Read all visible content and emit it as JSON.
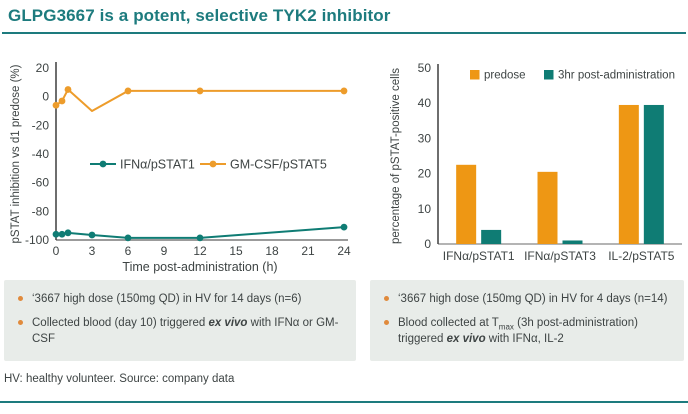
{
  "slide": {
    "title": "GLPG3667 is a potent, selective TYK2 inhibitor",
    "footer": "HV: healthy volunteer. Source: company data"
  },
  "colors": {
    "accent_teal": "#1D7B7E",
    "series_teal": "#0F7C74",
    "series_orange": "#ED9C2B",
    "bar_orange": "#EE9714",
    "box_background": "#E8ECE9",
    "bullet_dot": "#E08A3C",
    "text_dark": "#3E4444",
    "axis_dark": "#3F3F3F",
    "axis_gray": "#9B9B9B"
  },
  "chart_data": [
    {
      "type": "line",
      "title": "",
      "xlabel": "Time post-administration (h)",
      "ylabel": "pSTAT inhibition vs d1 predose (%)",
      "xlim": [
        0,
        24
      ],
      "ylim": [
        -100,
        20
      ],
      "xticks": [
        0,
        3,
        6,
        9,
        12,
        15,
        18,
        21,
        24
      ],
      "yticks": [
        20,
        0,
        -20,
        -40,
        -60,
        -80,
        -100
      ],
      "grid": false,
      "legend_position": "inside-center",
      "series": [
        {
          "name": "IFNα/pSTAT1",
          "color": "#0F7C74",
          "points": [
            {
              "x": 0,
              "y": -96,
              "marker": true
            },
            {
              "x": 0.5,
              "y": -96,
              "marker": true
            },
            {
              "x": 1,
              "y": -95,
              "marker": true
            },
            {
              "x": 3,
              "y": -96.5,
              "marker": true
            },
            {
              "x": 6,
              "y": -98.5,
              "marker": true
            },
            {
              "x": 12,
              "y": -98.5,
              "marker": true
            },
            {
              "x": 24,
              "y": -91,
              "marker": true
            }
          ]
        },
        {
          "name": "GM-CSF/pSTAT5",
          "color": "#ED9C2B",
          "points": [
            {
              "x": 0,
              "y": -6,
              "marker": true
            },
            {
              "x": 0.5,
              "y": -3,
              "marker": true
            },
            {
              "x": 1,
              "y": 5,
              "marker": true
            },
            {
              "x": 3,
              "y": -10,
              "marker": false
            },
            {
              "x": 6,
              "y": 4,
              "marker": true
            },
            {
              "x": 12,
              "y": 4,
              "marker": true
            },
            {
              "x": 24,
              "y": 4,
              "marker": true
            }
          ]
        }
      ]
    },
    {
      "type": "bar",
      "title": "",
      "xlabel": "",
      "ylabel": "percentage of pSTAT-positive cells",
      "categories": [
        "IFNα/pSTAT1",
        "IFNα/pSTAT3",
        "IL-2/pSTAT5"
      ],
      "ylim": [
        0,
        50
      ],
      "yticks": [
        0,
        10,
        20,
        30,
        40,
        50
      ],
      "grid": false,
      "legend_position": "top-inside",
      "series": [
        {
          "name": "predose",
          "color": "#EE9714",
          "values": [
            22.5,
            20.5,
            39.5
          ]
        },
        {
          "name": "3hr post-administration",
          "color": "#0F7C74",
          "values": [
            4,
            1,
            39.5
          ]
        }
      ]
    }
  ],
  "left_box": {
    "bullets": [
      {
        "segments": [
          {
            "text": "‘3667 high dose (150mg QD) in HV for 14 days (n=6)"
          }
        ]
      },
      {
        "segments": [
          {
            "text": "Collected blood (day 10) triggered "
          },
          {
            "text": "ex vivo",
            "style": "bold-italic"
          },
          {
            "text": " with IFNα or GM-CSF"
          }
        ]
      }
    ]
  },
  "right_box": {
    "bullets": [
      {
        "segments": [
          {
            "text": "‘3667 high dose (150mg QD) in HV for 4 days (n=14)"
          }
        ]
      },
      {
        "segments": [
          {
            "text": "Blood collected at T"
          },
          {
            "text": "max",
            "style": "sub"
          },
          {
            "text": " (3h post-administration) triggered "
          },
          {
            "text": "ex vivo",
            "style": "bold-italic"
          },
          {
            "text": " with IFNα, IL-2"
          }
        ]
      }
    ]
  }
}
